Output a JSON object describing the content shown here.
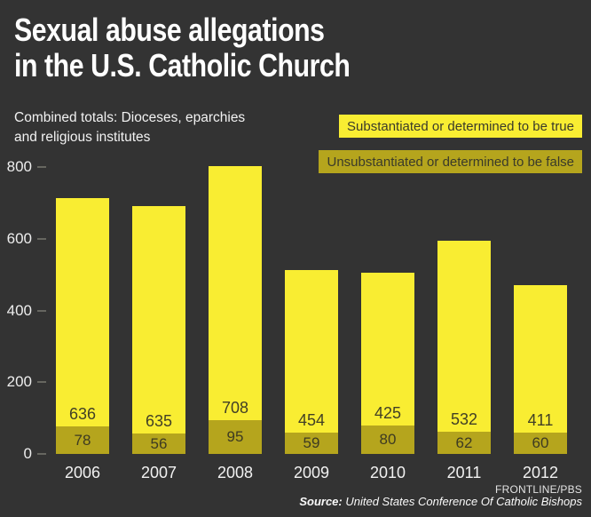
{
  "header": {
    "title_line1": "Sexual abuse allegations",
    "title_line2": "in the U.S. Catholic Church",
    "subtitle_line1": "Combined totals: Dioceses, eparchies",
    "subtitle_line2": "and religious institutes"
  },
  "legend": {
    "substantiated_label": "Substantiated or determined to be true",
    "unsubstantiated_label": "Unsubstantiated or determined to be false"
  },
  "footer": {
    "credit": "FRONTLINE/PBS",
    "source_label": "Source:",
    "source_text": " United States Conference Of Catholic Bishops"
  },
  "colors": {
    "background": "#333333",
    "substantiated": "#f9ed32",
    "unsubstantiated": "#b5a51d",
    "bar_value_text": "#413f26",
    "axis_text": "#ededed"
  },
  "chart_data": {
    "type": "bar",
    "stacked": true,
    "title": "Sexual abuse allegations in the U.S. Catholic Church",
    "subtitle": "Combined totals: Dioceses, eparchies and religious institutes",
    "categories": [
      "2006",
      "2007",
      "2008",
      "2009",
      "2010",
      "2011",
      "2012"
    ],
    "series": [
      {
        "name": "Substantiated or determined to be true",
        "color": "#f9ed32",
        "values": [
          636,
          635,
          708,
          454,
          425,
          532,
          411
        ]
      },
      {
        "name": "Unsubstantiated or determined to be false",
        "color": "#b5a51d",
        "values": [
          78,
          56,
          95,
          59,
          80,
          62,
          60
        ]
      }
    ],
    "xlabel": "",
    "ylabel": "",
    "ylim": [
      0,
      800
    ],
    "yticks": [
      0,
      200,
      400,
      600,
      800
    ],
    "grid": false,
    "legend_position": "top-right",
    "source": "United States Conference Of Catholic Bishops",
    "credit": "FRONTLINE/PBS"
  }
}
